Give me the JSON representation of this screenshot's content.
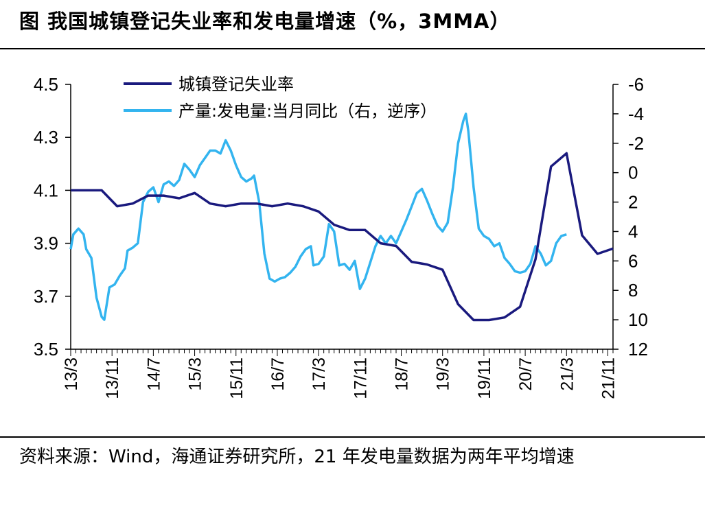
{
  "title": "图  我国城镇登记失业率和发电量增速（%，3MMA）",
  "source": "资料来源：Wind，海通证券研究所，21 年发电量数据为两年平均增速",
  "colors": {
    "series_1": "#1a1a7e",
    "series_2": "#33b4ef",
    "axis": "#000000"
  },
  "chart_data": {
    "type": "line",
    "title": "我国城镇登记失业率和发电量增速（%，3MMA）",
    "x_ticks": [
      "13/3",
      "13/11",
      "14/7",
      "15/3",
      "15/11",
      "16/7",
      "17/3",
      "17/11",
      "18/7",
      "19/3",
      "19/11",
      "20/7",
      "21/3",
      "21/11"
    ],
    "x_range": [
      0,
      105
    ],
    "left_axis": {
      "range": [
        3.5,
        4.5
      ],
      "ticks": [
        "4.5",
        "4.3",
        "4.1",
        "3.9",
        "3.7",
        "3.5"
      ]
    },
    "right_axis": {
      "range": [
        -6,
        12
      ],
      "inverted": true,
      "ticks": [
        "-6",
        "-4",
        "-2",
        "0",
        "2",
        "4",
        "6",
        "8",
        "10",
        "12"
      ]
    },
    "series": [
      {
        "name": "城镇登记失业率",
        "axis": "left",
        "points": [
          [
            0,
            4.1
          ],
          [
            3,
            4.1
          ],
          [
            6,
            4.1
          ],
          [
            9,
            4.04
          ],
          [
            12,
            4.05
          ],
          [
            15,
            4.08
          ],
          [
            18,
            4.08
          ],
          [
            21,
            4.07
          ],
          [
            24,
            4.09
          ],
          [
            27,
            4.05
          ],
          [
            30,
            4.04
          ],
          [
            33,
            4.05
          ],
          [
            36,
            4.05
          ],
          [
            39,
            4.04
          ],
          [
            42,
            4.05
          ],
          [
            45,
            4.04
          ],
          [
            48,
            4.02
          ],
          [
            51,
            3.97
          ],
          [
            54,
            3.95
          ],
          [
            57,
            3.95
          ],
          [
            60,
            3.9
          ],
          [
            63,
            3.89
          ],
          [
            66,
            3.83
          ],
          [
            69,
            3.82
          ],
          [
            72,
            3.8
          ],
          [
            75,
            3.67
          ],
          [
            78,
            3.61
          ],
          [
            81,
            3.61
          ],
          [
            84,
            3.62
          ],
          [
            87,
            3.66
          ],
          [
            90,
            3.84
          ],
          [
            93,
            4.19
          ],
          [
            96,
            4.24
          ],
          [
            99,
            3.93
          ],
          [
            102,
            3.86
          ],
          [
            105,
            3.88
          ]
        ]
      },
      {
        "name": "产量:发电量:当月同比（右，逆序）",
        "axis": "right",
        "points": [
          [
            0,
            5.2
          ],
          [
            0.5,
            4.2
          ],
          [
            1.5,
            3.8
          ],
          [
            2.5,
            4.2
          ],
          [
            3,
            5.2
          ],
          [
            4,
            5.8
          ],
          [
            5,
            8.5
          ],
          [
            6,
            9.8
          ],
          [
            6.5,
            10.0
          ],
          [
            7.5,
            7.8
          ],
          [
            8.5,
            7.6
          ],
          [
            9.5,
            7.0
          ],
          [
            10.5,
            6.5
          ],
          [
            11,
            5.3
          ],
          [
            12,
            5.1
          ],
          [
            13,
            4.8
          ],
          [
            14,
            2.0
          ],
          [
            15,
            1.3
          ],
          [
            16,
            1.0
          ],
          [
            17,
            2.0
          ],
          [
            18,
            0.8
          ],
          [
            19,
            0.6
          ],
          [
            20,
            0.9
          ],
          [
            21,
            0.5
          ],
          [
            22,
            -0.6
          ],
          [
            23,
            -0.2
          ],
          [
            24,
            0.3
          ],
          [
            25,
            -0.5
          ],
          [
            26,
            -1.0
          ],
          [
            27,
            -1.5
          ],
          [
            28,
            -1.5
          ],
          [
            29,
            -1.3
          ],
          [
            30,
            -2.2
          ],
          [
            31,
            -1.5
          ],
          [
            32,
            -0.5
          ],
          [
            33,
            0.3
          ],
          [
            34,
            0.6
          ],
          [
            35,
            0.4
          ],
          [
            35.5,
            0.2
          ],
          [
            36.5,
            2.0
          ],
          [
            37.5,
            5.5
          ],
          [
            38.5,
            7.2
          ],
          [
            39.5,
            7.4
          ],
          [
            40.5,
            7.2
          ],
          [
            41.5,
            7.1
          ],
          [
            42.5,
            6.8
          ],
          [
            43.5,
            6.4
          ],
          [
            44.5,
            5.7
          ],
          [
            45.5,
            5.2
          ],
          [
            46.5,
            5.0
          ],
          [
            47,
            6.3
          ],
          [
            48,
            6.2
          ],
          [
            49,
            5.7
          ],
          [
            50,
            3.5
          ],
          [
            51,
            4.0
          ],
          [
            52,
            6.3
          ],
          [
            53,
            6.2
          ],
          [
            54,
            6.6
          ],
          [
            55,
            6.0
          ],
          [
            56,
            7.9
          ],
          [
            57,
            7.2
          ],
          [
            58,
            6.1
          ],
          [
            59,
            5.0
          ],
          [
            60,
            4.3
          ],
          [
            61,
            4.8
          ],
          [
            62,
            4.3
          ],
          [
            63,
            4.8
          ],
          [
            64,
            4.0
          ],
          [
            65,
            3.2
          ],
          [
            66,
            2.3
          ],
          [
            67,
            1.4
          ],
          [
            68,
            1.1
          ],
          [
            69,
            1.9
          ],
          [
            70,
            2.8
          ],
          [
            71,
            3.6
          ],
          [
            72,
            4.0
          ],
          [
            73,
            3.4
          ],
          [
            74,
            1.0
          ],
          [
            75,
            -2.0
          ],
          [
            76,
            -3.5
          ],
          [
            76.5,
            -4.0
          ],
          [
            77,
            -2.8
          ],
          [
            78,
            1.0
          ],
          [
            79,
            3.8
          ],
          [
            80,
            4.3
          ],
          [
            81,
            4.5
          ],
          [
            82,
            5.0
          ],
          [
            83,
            4.8
          ],
          [
            84,
            5.8
          ],
          [
            85,
            6.2
          ],
          [
            86,
            6.7
          ],
          [
            87,
            6.8
          ],
          [
            88,
            6.7
          ],
          [
            89,
            6.2
          ],
          [
            90,
            5.0
          ],
          [
            91,
            5.5
          ],
          [
            92,
            6.3
          ],
          [
            93,
            6.0
          ],
          [
            94,
            4.8
          ],
          [
            95,
            4.3
          ],
          [
            96,
            4.2
          ]
        ]
      }
    ],
    "legend_position": "top-center"
  }
}
